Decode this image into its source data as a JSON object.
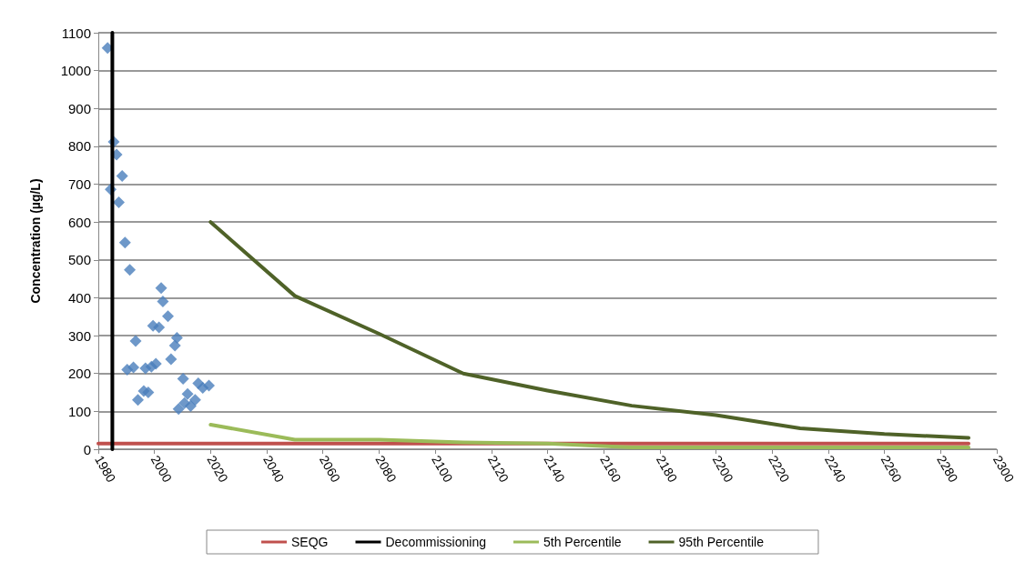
{
  "chart_data": {
    "type": "line",
    "ylabel": "Concentration (µg/L)",
    "xlim": [
      1980,
      2300
    ],
    "xticks": [
      1980,
      2000,
      2020,
      2040,
      2060,
      2080,
      2100,
      2120,
      2140,
      2160,
      2180,
      2200,
      2220,
      2240,
      2260,
      2280,
      2300
    ],
    "ylim": [
      0,
      1100
    ],
    "yticks": [
      0,
      100,
      200,
      300,
      400,
      500,
      600,
      700,
      800,
      900,
      1000,
      1100
    ],
    "grid": "y",
    "legend": "bottom",
    "line_style": "solid",
    "series": [
      {
        "type": "scatter",
        "marker": "diamond",
        "color": "#4a7ebb",
        "x": [
          1983.3,
          1985.5,
          1986.5,
          1988.5,
          1984.4,
          1987.3,
          1989.5,
          1991.2,
          2002.4,
          2003,
          2004.8,
          1999.5,
          2001.6,
          1993.3,
          2008,
          2007.3,
          2005.9,
          1990.3,
          1992.5,
          1996.8,
          2000.5,
          1998.9,
          2010.2,
          1996.2,
          1994.1,
          1997.8,
          2015.6,
          2019.4,
          2017.2,
          2011.8,
          2014.5,
          2008.6,
          2010.7,
          2012.9
        ],
        "values": [
          1060,
          812,
          778,
          722,
          686,
          652,
          546,
          474,
          426,
          390,
          351,
          326,
          322,
          286,
          294,
          274,
          238,
          210,
          216,
          214,
          226,
          218,
          186,
          154,
          130,
          150,
          174,
          168,
          162,
          146,
          130,
          106,
          122,
          114
        ]
      },
      {
        "name": "SEQG",
        "color": "#c0504d",
        "x": [
          1980,
          2290
        ],
        "values": [
          15,
          15
        ]
      },
      {
        "name": "Decommissioning",
        "color": "#000000",
        "x": [
          1985,
          1985
        ],
        "values": [
          0,
          1100
        ]
      },
      {
        "name": "5th Percentile",
        "color": "#9bbb59",
        "x": [
          2020,
          2050,
          2080,
          2110,
          2140,
          2170,
          2200,
          2230,
          2260,
          2290
        ],
        "values": [
          65,
          25,
          25,
          18,
          15,
          5,
          5,
          5,
          5,
          5
        ]
      },
      {
        "name": "95th Percentile",
        "color": "#4f6228",
        "x": [
          2020,
          2050,
          2080,
          2110,
          2140,
          2170,
          2200,
          2230,
          2260,
          2290
        ],
        "values": [
          600,
          405,
          305,
          200,
          155,
          115,
          90,
          55,
          40,
          30
        ]
      }
    ]
  }
}
